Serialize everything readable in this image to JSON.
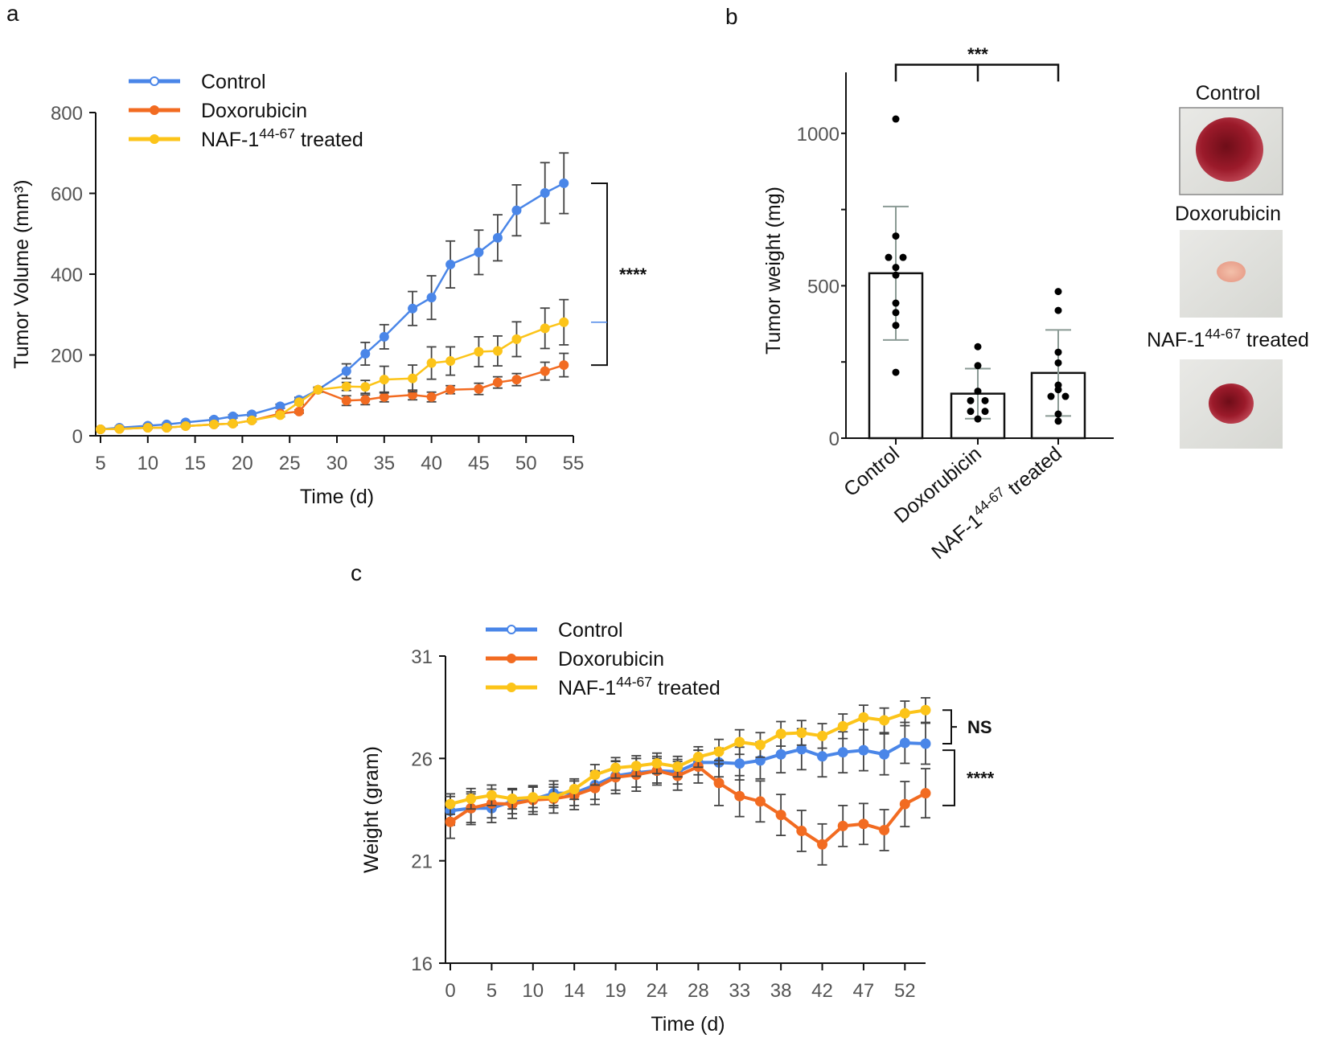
{
  "colors": {
    "control": "#4a86e8",
    "doxorubicin": "#f26b21",
    "naf": "#fcc419",
    "axis": "#111111",
    "error": "#444444"
  },
  "chart_data": [
    {
      "panel": "a",
      "type": "line",
      "xlabel": "Time (d)",
      "ylabel": "Tumor Volume (mm³)",
      "xlim": [
        5,
        55
      ],
      "ylim": [
        0,
        800
      ],
      "xticks": [
        5,
        10,
        15,
        20,
        25,
        30,
        35,
        40,
        45,
        50,
        55
      ],
      "yticks": [
        0,
        200,
        400,
        600,
        800
      ],
      "legend_position": "top-left",
      "significance": "****",
      "x": [
        5,
        7,
        10,
        12,
        14,
        17,
        19,
        21,
        24,
        26,
        28,
        31,
        33,
        35,
        38,
        40,
        42,
        45,
        47,
        49,
        52,
        54
      ],
      "series": [
        {
          "name": "Control",
          "color_key": "control",
          "values": [
            16,
            20,
            25,
            28,
            33,
            40,
            48,
            53,
            73,
            89,
            114,
            160,
            203,
            245,
            315,
            342,
            424,
            454,
            490,
            558,
            601,
            625
          ],
          "errors": [
            3,
            3,
            3,
            3,
            3,
            4,
            4,
            4,
            5,
            6,
            6,
            18,
            28,
            30,
            42,
            54,
            58,
            55,
            57,
            63,
            75,
            75
          ]
        },
        {
          "name": "Doxorubicin",
          "color_key": "doxorubicin",
          "values": [
            16,
            17,
            20,
            20,
            24,
            28,
            30,
            38,
            55,
            60,
            114,
            87,
            89,
            96,
            101,
            96,
            114,
            116,
            132,
            139,
            160,
            175
          ],
          "errors": [
            2,
            2,
            2,
            2,
            2,
            3,
            3,
            3,
            4,
            4,
            5,
            12,
            12,
            12,
            12,
            12,
            10,
            14,
            14,
            15,
            22,
            29
          ]
        },
        {
          "name": "NAF-1",
          "name_sup": "44-67",
          "name_suffix": "treated",
          "color_key": "naf",
          "values": [
            16,
            17,
            20,
            20,
            24,
            28,
            30,
            38,
            51,
            83,
            114,
            122,
            121,
            139,
            142,
            180,
            185,
            208,
            210,
            239,
            266,
            281
          ],
          "errors": [
            2,
            2,
            2,
            2,
            2,
            3,
            3,
            3,
            4,
            5,
            6,
            10,
            16,
            33,
            33,
            40,
            35,
            37,
            37,
            43,
            50,
            56
          ]
        }
      ]
    },
    {
      "panel": "b",
      "type": "bar",
      "ylabel": "Tumor weight (mg)",
      "ylim": [
        0,
        1200
      ],
      "yticks": [
        0,
        500,
        1000
      ],
      "significance": "***",
      "categories": [
        "Control",
        "Doxorubicin",
        "NAF-1 44-67 treated"
      ],
      "category_parts": [
        {
          "main": "Control",
          "sup": "",
          "suffix": ""
        },
        {
          "main": "Doxorubicin",
          "sup": "",
          "suffix": ""
        },
        {
          "main": "NAF-1",
          "sup": "44-67",
          "suffix": "treated"
        }
      ],
      "values": [
        541,
        146,
        214
      ],
      "errors": [
        219,
        82,
        141
      ],
      "points": [
        [
          1047,
          663,
          593,
          593,
          560,
          535,
          443,
          412,
          370,
          216
        ],
        [
          300,
          238,
          154,
          123,
          123,
          88,
          88,
          63
        ],
        [
          481,
          419,
          282,
          247,
          174,
          159,
          137,
          137,
          79,
          56
        ]
      ]
    },
    {
      "panel": "c",
      "type": "line",
      "xlabel": "Time (d)",
      "ylabel": "Weight (gram)",
      "ylim": [
        16,
        31
      ],
      "yticks": [
        16,
        21,
        26,
        31
      ],
      "xticks": [
        0,
        5,
        10,
        14,
        19,
        24,
        28,
        33,
        38,
        42,
        47,
        52
      ],
      "legend_position": "top-left",
      "significance": [
        {
          "label": "NS",
          "between": [
            "NAF-1 44-67 treated",
            "Control"
          ]
        },
        {
          "label": "****",
          "between": [
            "Control",
            "Doxorubicin"
          ]
        }
      ],
      "x": [
        0,
        2,
        5,
        7,
        10,
        12,
        14,
        17,
        19,
        21,
        24,
        26,
        28,
        31,
        33,
        35,
        38,
        40,
        42,
        45,
        47,
        49,
        52,
        54
      ],
      "series": [
        {
          "name": "Control",
          "color_key": "control",
          "values": [
            23.44,
            23.57,
            23.57,
            23.9,
            24.0,
            24.3,
            24.3,
            24.7,
            25.15,
            25.3,
            25.4,
            25.35,
            25.8,
            25.8,
            25.75,
            25.9,
            26.2,
            26.45,
            26.1,
            26.3,
            26.4,
            26.2,
            26.76,
            26.72
          ],
          "errors": [
            0.7,
            0.7,
            0.7,
            0.6,
            0.6,
            0.6,
            0.6,
            0.7,
            0.7,
            0.7,
            0.6,
            0.6,
            0.6,
            0.7,
            0.8,
            0.9,
            0.9,
            1.0,
            1.0,
            1.0,
            1.0,
            1.0,
            1.0,
            1.0
          ]
        },
        {
          "name": "Doxorubicin",
          "color_key": "doxorubicin",
          "values": [
            22.9,
            23.57,
            23.8,
            23.77,
            23.97,
            24.03,
            24.2,
            24.55,
            25.08,
            25.2,
            25.4,
            25.15,
            25.6,
            24.8,
            24.16,
            23.9,
            23.24,
            22.46,
            21.8,
            22.7,
            22.8,
            22.5,
            23.77,
            24.3
          ],
          "errors": [
            0.8,
            0.8,
            0.7,
            0.7,
            0.7,
            0.7,
            0.7,
            0.8,
            0.8,
            0.8,
            0.7,
            0.7,
            0.8,
            1.1,
            1.0,
            1.0,
            1.0,
            1.0,
            1.0,
            1.0,
            1.0,
            1.0,
            1.1,
            1.2
          ]
        },
        {
          "name": "NAF-1",
          "name_sup": "44-67",
          "name_suffix": "treated",
          "color_key": "naf",
          "values": [
            23.77,
            24.03,
            24.2,
            24.03,
            24.1,
            24.1,
            24.5,
            25.2,
            25.54,
            25.63,
            25.76,
            25.6,
            26.07,
            26.33,
            26.8,
            26.66,
            27.2,
            27.25,
            27.1,
            27.57,
            28.0,
            27.86,
            28.2,
            28.36
          ],
          "errors": [
            0.5,
            0.5,
            0.5,
            0.5,
            0.5,
            0.5,
            0.5,
            0.5,
            0.5,
            0.5,
            0.5,
            0.5,
            0.5,
            0.6,
            0.6,
            0.6,
            0.6,
            0.6,
            0.6,
            0.6,
            0.6,
            0.6,
            0.6,
            0.6
          ]
        }
      ]
    }
  ],
  "panels": {
    "a": "a",
    "b": "b",
    "c": "c"
  },
  "photos": {
    "labels": [
      {
        "main": "Control",
        "sup": "",
        "suffix": ""
      },
      {
        "main": "Doxorubicin",
        "sup": "",
        "suffix": ""
      },
      {
        "main": "NAF-1",
        "sup": "44-67",
        "suffix": "treated"
      }
    ]
  }
}
